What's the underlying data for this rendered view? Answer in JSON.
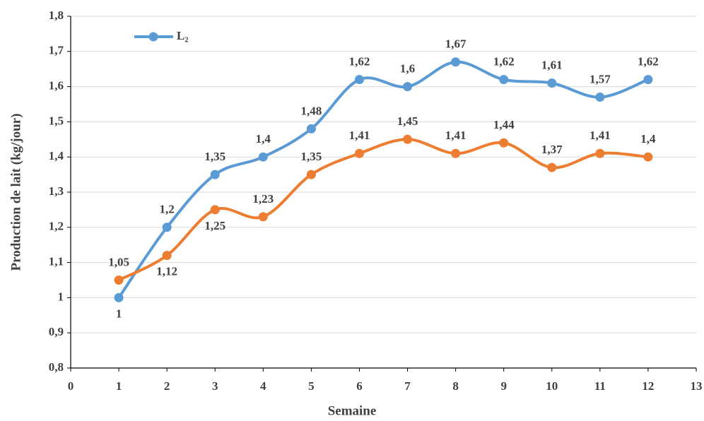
{
  "chart_data": {
    "type": "line",
    "x_label": "Semaine",
    "y_label": "Production de lait (kg/jour)",
    "x": [
      1,
      2,
      3,
      4,
      5,
      6,
      7,
      8,
      9,
      10,
      11,
      12
    ],
    "series": [
      {
        "name": "L₂",
        "color": "#5b9bd5",
        "values": [
          1,
          1.2,
          1.35,
          1.4,
          1.48,
          1.62,
          1.6,
          1.67,
          1.62,
          1.61,
          1.57,
          1.62
        ],
        "value_labels": [
          "1",
          "1,2",
          "1,35",
          "1,4",
          "1,48",
          "1,62",
          "1,6",
          "1,67",
          "1,62",
          "1,61",
          "1,57",
          "1,62"
        ]
      },
      {
        "color": "#ed7d31",
        "values": [
          1.05,
          1.12,
          1.25,
          1.23,
          1.35,
          1.41,
          1.45,
          1.41,
          1.44,
          1.37,
          1.41,
          1.4
        ],
        "value_labels": [
          "1,05",
          "1,12",
          "1,25",
          "1,23",
          "1,35",
          "1,41",
          "1,45",
          "1,41",
          "1,44",
          "1,37",
          "1,41",
          "1,4"
        ]
      }
    ],
    "xlim": [
      0,
      13
    ],
    "xticks": [
      0,
      1,
      2,
      3,
      4,
      5,
      6,
      7,
      8,
      9,
      10,
      11,
      12,
      13
    ],
    "ylim": [
      0.8,
      1.8
    ],
    "yticks": [
      {
        "value": 0.8,
        "label": "0,8"
      },
      {
        "value": 0.9,
        "label": "0,9"
      },
      1,
      {
        "value": 1.1,
        "label": "1,1"
      },
      {
        "value": 1.2,
        "label": "1,2"
      },
      {
        "value": 1.3,
        "label": "1,3"
      },
      {
        "value": 1.4,
        "label": "1,4"
      },
      {
        "value": 1.5,
        "label": "1,5"
      },
      {
        "value": 1.6,
        "label": "1,6"
      },
      {
        "value": 1.7,
        "label": "1,7"
      },
      {
        "value": 1.8,
        "label": "1,8"
      }
    ],
    "grid": true,
    "legend": "top-left"
  }
}
